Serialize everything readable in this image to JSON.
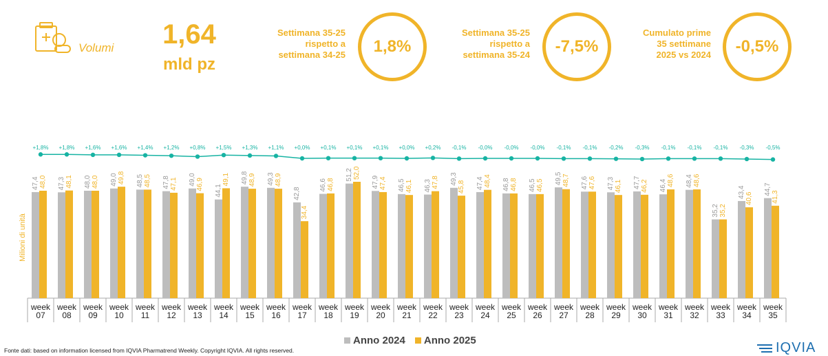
{
  "kpi": {
    "label": "Volumi",
    "value": "1,64",
    "unit": "mld pz"
  },
  "comparisons": [
    {
      "text": "Settimana 35-25\nrispetto a\nsettimana 34-25",
      "value": "1,8%"
    },
    {
      "text": "Settimana 35-25\nrispetto a\nsettimana 35-24",
      "value": "-7,5%"
    },
    {
      "text": "Cumulato prime\n35 settimane\n2025 vs 2024",
      "value": "-0,5%"
    }
  ],
  "colors": {
    "accent": "#f0b429",
    "series_2024": "#bdbdbd",
    "series_2025": "#f0b429",
    "trend": "#17b3a3"
  },
  "chart_data": {
    "type": "bar",
    "ylabel": "Milioni di unità",
    "categories": [
      "week 07",
      "week 08",
      "week 09",
      "week 10",
      "week 11",
      "week 12",
      "week 13",
      "week 14",
      "week 15",
      "week 16",
      "week 17",
      "week 18",
      "week 19",
      "week 20",
      "week 21",
      "week 22",
      "week 23",
      "week 24",
      "week 25",
      "week 26",
      "week 27",
      "week 28",
      "week 29",
      "week 30",
      "week 31",
      "week 32",
      "week 33",
      "week 34",
      "week 35"
    ],
    "series": [
      {
        "name": "Anno 2024",
        "values": [
          "47,4",
          "47,3",
          "48,0",
          "49,0",
          "48,5",
          "47,8",
          "49,0",
          "44,1",
          "49,8",
          "49,3",
          "42,8",
          "46,6",
          "51,2",
          "47,9",
          "46,5",
          "46,3",
          "49,3",
          "47,4",
          "46,8",
          "46,5",
          "49,5",
          "47,6",
          "47,3",
          "47,7",
          "46,4",
          "48,4",
          "35,2",
          "43,4",
          "44,7"
        ]
      },
      {
        "name": "Anno 2025",
        "values": [
          "48,0",
          "48,1",
          "48,0",
          "49,8",
          "48,5",
          "47,1",
          "46,9",
          "49,1",
          "48,9",
          "48,9",
          "34,4",
          "46,8",
          "52,0",
          "47,4",
          "46,1",
          "47,8",
          "45,8",
          "48,4",
          "46,8",
          "46,5",
          "48,7",
          "47,6",
          "46,1",
          "46,2",
          "48,6",
          "48,6",
          "35,2",
          "40,6",
          "41,3"
        ]
      }
    ],
    "trend": {
      "labels": [
        "+1,8%",
        "+1,8%",
        "+1,6%",
        "+1,6%",
        "+1,4%",
        "+1,2%",
        "+0,8%",
        "+1,5%",
        "+1,3%",
        "+1,1%",
        "+0,0%",
        "+0,1%",
        "+0,1%",
        "+0,1%",
        "+0,0%",
        "+0,2%",
        "-0,1%",
        "-0,0%",
        "-0,0%",
        "-0,0%",
        "-0,1%",
        "-0,1%",
        "-0,2%",
        "-0,3%",
        "-0,1%",
        "-0,1%",
        "-0,1%",
        "-0,3%",
        "-0,5%"
      ],
      "values": [
        1.8,
        1.8,
        1.6,
        1.6,
        1.4,
        1.2,
        0.8,
        1.5,
        1.3,
        1.1,
        0.0,
        0.1,
        0.1,
        0.1,
        0.0,
        0.2,
        -0.1,
        -0.0,
        -0.0,
        -0.0,
        -0.1,
        -0.1,
        -0.2,
        -0.3,
        -0.1,
        -0.1,
        -0.1,
        -0.3,
        -0.5
      ]
    },
    "ylim": [
      0,
      80
    ]
  },
  "legend": [
    "Anno 2024",
    "Anno 2025"
  ],
  "footer": "Fonte dati: based on information licensed from IQVIA Pharmatrend Weekly. Copyright IQVIA. All rights reserved.",
  "logo": "IQVIA"
}
